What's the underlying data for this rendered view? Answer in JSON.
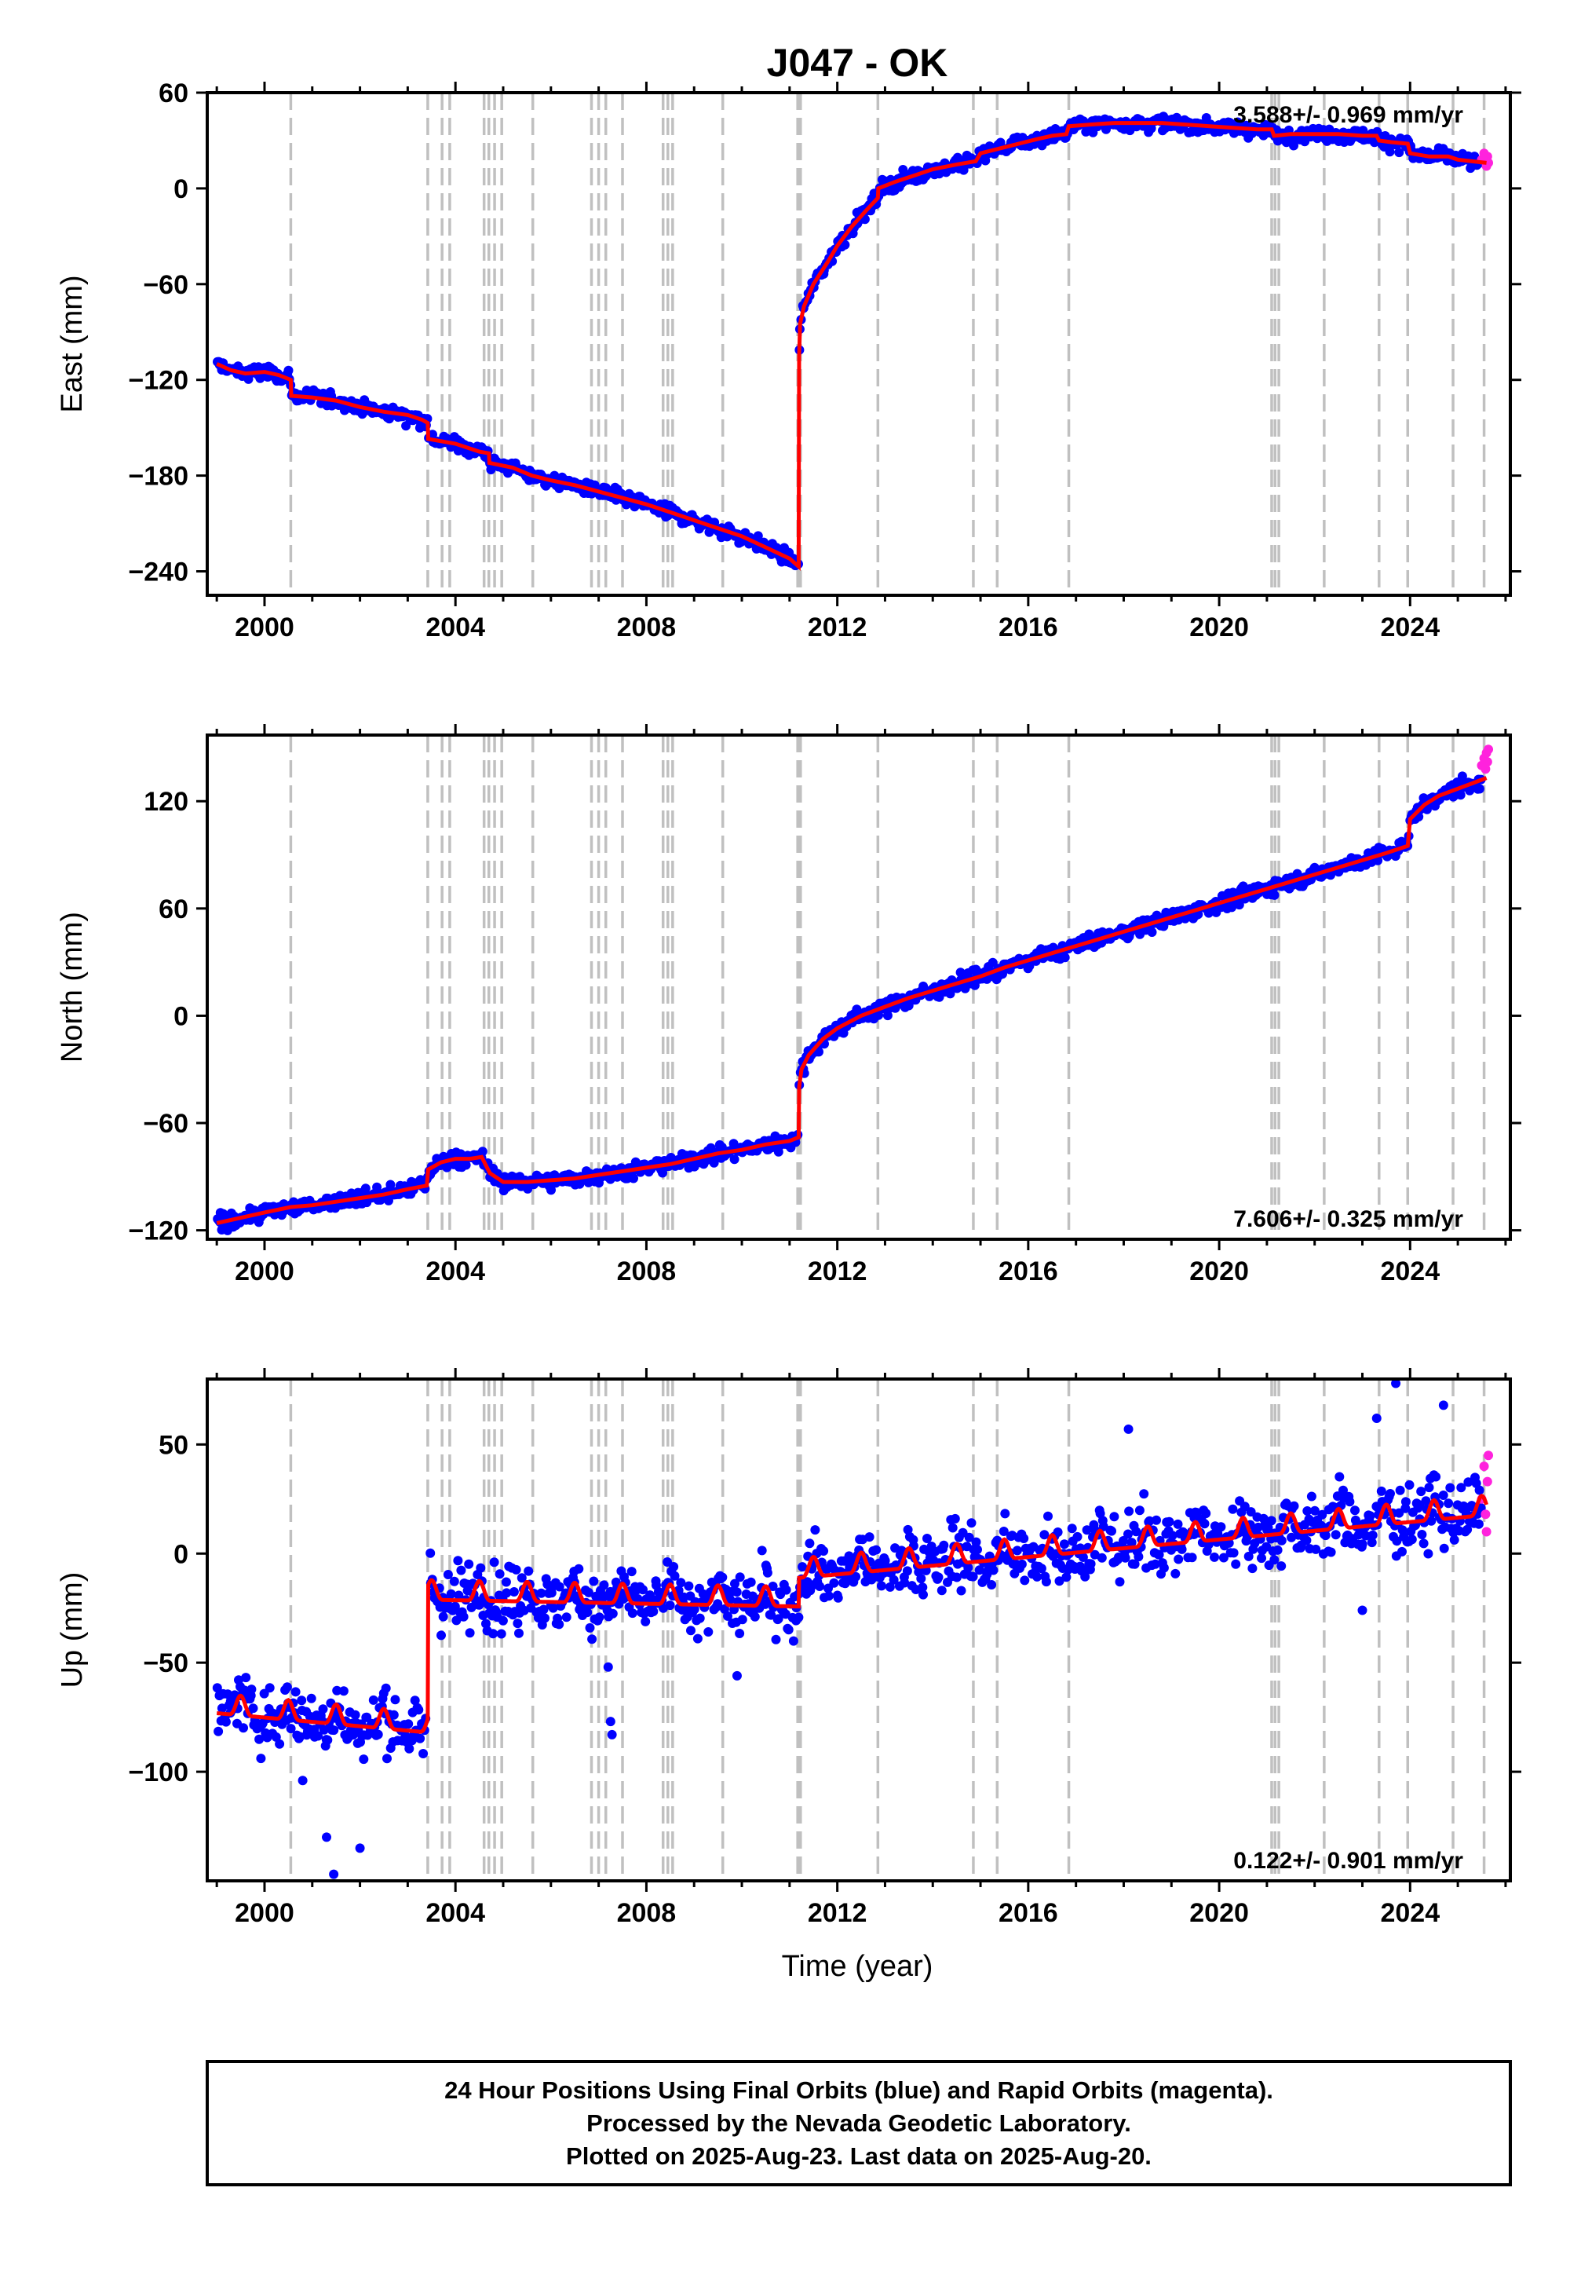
{
  "title": "J047 - OK",
  "xlabel": "Time (year)",
  "footer": {
    "line1": "24 Hour Positions Using Final Orbits (blue) and Rapid Orbits (magenta).",
    "line2": "Processed by the Nevada Geodetic Laboratory.",
    "line3": "Plotted on 2025-Aug-23. Last data on 2025-Aug-20."
  },
  "colors": {
    "final": "#0000ff",
    "rapid": "#ff22dd",
    "model": "#ff0000",
    "event": "#c0c0c0"
  },
  "chart_data": [
    {
      "type": "scatter",
      "component": "East",
      "ylabel": "East (mm)",
      "rate": "3.588+/- 0.969 mm/yr",
      "xlim": [
        1998.8,
        2026.1
      ],
      "ylim": [
        -255,
        60
      ],
      "yticks": [
        60,
        0,
        -60,
        -120,
        -180,
        -240
      ],
      "ytick_labels": [
        "60",
        "0",
        "−60",
        "−120",
        "−180",
        "−240"
      ],
      "xticks": [
        2000,
        2004,
        2008,
        2012,
        2016,
        2020,
        2024
      ],
      "xtick_labels": [
        "2000",
        "2004",
        "2008",
        "2012",
        "2016",
        "2020",
        "2024"
      ],
      "model": [
        [
          1999.0,
          -110
        ],
        [
          1999.3,
          -114
        ],
        [
          1999.6,
          -116
        ],
        [
          2000.0,
          -115
        ],
        [
          2000.3,
          -117
        ],
        [
          2000.55,
          -120
        ],
        [
          2000.56,
          -130
        ],
        [
          2001.0,
          -131
        ],
        [
          2001.5,
          -133
        ],
        [
          2002.0,
          -137
        ],
        [
          2002.5,
          -140
        ],
        [
          2003.0,
          -142
        ],
        [
          2003.3,
          -145
        ],
        [
          2003.42,
          -147
        ],
        [
          2003.43,
          -157
        ],
        [
          2004.0,
          -160
        ],
        [
          2004.5,
          -165
        ],
        [
          2004.7,
          -166
        ],
        [
          2004.71,
          -172
        ],
        [
          2005.2,
          -175
        ],
        [
          2005.6,
          -180
        ],
        [
          2006.0,
          -183
        ],
        [
          2006.5,
          -186
        ],
        [
          2007.0,
          -190
        ],
        [
          2007.5,
          -194
        ],
        [
          2008.0,
          -198
        ],
        [
          2008.5,
          -203
        ],
        [
          2009.0,
          -208
        ],
        [
          2009.5,
          -213
        ],
        [
          2010.0,
          -218
        ],
        [
          2010.5,
          -225
        ],
        [
          2011.0,
          -232
        ],
        [
          2011.19,
          -237
        ],
        [
          2011.2,
          -105
        ],
        [
          2011.22,
          -85
        ],
        [
          2011.3,
          -74
        ],
        [
          2011.5,
          -60
        ],
        [
          2011.8,
          -46
        ],
        [
          2012.0,
          -36
        ],
        [
          2012.3,
          -24
        ],
        [
          2012.6,
          -14
        ],
        [
          2012.85,
          -6
        ],
        [
          2012.86,
          0
        ],
        [
          2013.2,
          4
        ],
        [
          2013.6,
          8
        ],
        [
          2014.0,
          12
        ],
        [
          2014.5,
          15
        ],
        [
          2014.9,
          17
        ],
        [
          2015.0,
          22
        ],
        [
          2015.4,
          25
        ],
        [
          2015.8,
          28
        ],
        [
          2016.2,
          31
        ],
        [
          2016.5,
          33
        ],
        [
          2016.8,
          34
        ],
        [
          2016.85,
          39
        ],
        [
          2017.3,
          40
        ],
        [
          2017.8,
          41
        ],
        [
          2018.3,
          41
        ],
        [
          2018.8,
          41
        ],
        [
          2019.3,
          40
        ],
        [
          2019.8,
          39
        ],
        [
          2020.3,
          38
        ],
        [
          2020.8,
          37
        ],
        [
          2021.1,
          37
        ],
        [
          2021.15,
          33
        ],
        [
          2021.5,
          34
        ],
        [
          2022.0,
          34
        ],
        [
          2022.5,
          34
        ],
        [
          2023.0,
          33
        ],
        [
          2023.3,
          33
        ],
        [
          2023.35,
          30
        ],
        [
          2023.6,
          29
        ],
        [
          2023.95,
          28
        ],
        [
          2024.0,
          22
        ],
        [
          2024.4,
          20
        ],
        [
          2024.8,
          20
        ],
        [
          2025.0,
          18
        ],
        [
          2025.3,
          17
        ],
        [
          2025.6,
          16
        ]
      ],
      "rapid": [
        [
          2025.5,
          18
        ],
        [
          2025.55,
          22
        ],
        [
          2025.6,
          14
        ],
        [
          2025.62,
          20
        ],
        [
          2025.64,
          16
        ]
      ]
    },
    {
      "type": "scatter",
      "component": "North",
      "ylabel": "North (mm)",
      "rate": "7.606+/- 0.325 mm/yr",
      "xlim": [
        1998.8,
        2026.1
      ],
      "ylim": [
        -125,
        157
      ],
      "yticks": [
        120,
        60,
        0,
        -60,
        -120
      ],
      "ytick_labels": [
        "120",
        "60",
        "0",
        "−60",
        "−120"
      ],
      "xticks": [
        2000,
        2004,
        2008,
        2012,
        2016,
        2020,
        2024
      ],
      "xtick_labels": [
        "2000",
        "2004",
        "2008",
        "2012",
        "2016",
        "2020",
        "2024"
      ],
      "model": [
        [
          1999.0,
          -116
        ],
        [
          1999.5,
          -113
        ],
        [
          2000.0,
          -110
        ],
        [
          2000.55,
          -107
        ],
        [
          2001.0,
          -106
        ],
        [
          2001.5,
          -104
        ],
        [
          2002.0,
          -102
        ],
        [
          2002.5,
          -100
        ],
        [
          2003.0,
          -97
        ],
        [
          2003.4,
          -95
        ],
        [
          2003.43,
          -86
        ],
        [
          2003.7,
          -82
        ],
        [
          2004.0,
          -80
        ],
        [
          2004.3,
          -80
        ],
        [
          2004.55,
          -79
        ],
        [
          2004.72,
          -88
        ],
        [
          2005.0,
          -93
        ],
        [
          2005.5,
          -93
        ],
        [
          2006.0,
          -92
        ],
        [
          2006.5,
          -91
        ],
        [
          2007.0,
          -89
        ],
        [
          2007.5,
          -87
        ],
        [
          2008.0,
          -85
        ],
        [
          2008.5,
          -83
        ],
        [
          2009.0,
          -80
        ],
        [
          2009.5,
          -77
        ],
        [
          2010.0,
          -75
        ],
        [
          2010.5,
          -72
        ],
        [
          2011.0,
          -70
        ],
        [
          2011.19,
          -68
        ],
        [
          2011.2,
          -40
        ],
        [
          2011.25,
          -30
        ],
        [
          2011.4,
          -22
        ],
        [
          2011.7,
          -13
        ],
        [
          2012.0,
          -7
        ],
        [
          2012.5,
          0
        ],
        [
          2013.0,
          5
        ],
        [
          2013.5,
          10
        ],
        [
          2014.0,
          14
        ],
        [
          2014.5,
          18
        ],
        [
          2015.0,
          22
        ],
        [
          2015.5,
          27
        ],
        [
          2016.0,
          31
        ],
        [
          2016.5,
          35
        ],
        [
          2017.0,
          39
        ],
        [
          2017.5,
          43
        ],
        [
          2018.0,
          47
        ],
        [
          2018.5,
          51
        ],
        [
          2019.0,
          55
        ],
        [
          2019.5,
          59
        ],
        [
          2020.0,
          63
        ],
        [
          2020.5,
          67
        ],
        [
          2021.0,
          71
        ],
        [
          2021.5,
          75
        ],
        [
          2022.0,
          79
        ],
        [
          2022.5,
          83
        ],
        [
          2023.0,
          87
        ],
        [
          2023.5,
          91
        ],
        [
          2023.95,
          95
        ],
        [
          2024.0,
          110
        ],
        [
          2024.3,
          118
        ],
        [
          2024.6,
          123
        ],
        [
          2025.0,
          127
        ],
        [
          2025.3,
          130
        ],
        [
          2025.6,
          133
        ]
      ],
      "rapid": [
        [
          2025.5,
          140
        ],
        [
          2025.55,
          144
        ],
        [
          2025.58,
          138
        ],
        [
          2025.6,
          147
        ],
        [
          2025.62,
          142
        ],
        [
          2025.64,
          149
        ]
      ]
    },
    {
      "type": "scatter",
      "component": "Up",
      "ylabel": "Up (mm)",
      "rate": "0.122+/- 0.901 mm/yr",
      "xlim": [
        1998.8,
        2026.1
      ],
      "ylim": [
        -150,
        80
      ],
      "yticks": [
        50,
        0,
        -50,
        -100
      ],
      "ytick_labels": [
        "50",
        "0",
        "−50",
        "−100"
      ],
      "xticks": [
        2000,
        2004,
        2008,
        2012,
        2016,
        2020,
        2024
      ],
      "xtick_labels": [
        "2000",
        "2004",
        "2008",
        "2012",
        "2016",
        "2020",
        "2024"
      ],
      "model_segments": [
        {
          "x0": 1999.0,
          "x1": 2003.42,
          "offset": -70,
          "trend": -2.0
        },
        {
          "x0": 2003.43,
          "x1": 2011.19,
          "offset": -18,
          "trend": -0.4
        },
        {
          "x0": 2011.2,
          "x1": 2025.6,
          "offset": -8,
          "trend": 2.0
        }
      ],
      "seasonal_amplitude": 9,
      "outliers": [
        [
          2000.8,
          -104
        ],
        [
          2001.3,
          -130
        ],
        [
          2001.45,
          -147
        ],
        [
          2002.0,
          -135
        ],
        [
          2007.2,
          -52
        ],
        [
          2007.25,
          -77
        ],
        [
          2007.28,
          -83
        ],
        [
          2009.9,
          -56
        ],
        [
          2018.1,
          57
        ],
        [
          2023.0,
          -26
        ],
        [
          2023.3,
          62
        ],
        [
          2023.7,
          78
        ],
        [
          2024.7,
          68
        ]
      ],
      "rapid": [
        [
          2025.5,
          25
        ],
        [
          2025.55,
          40
        ],
        [
          2025.58,
          18
        ],
        [
          2025.6,
          10
        ],
        [
          2025.62,
          33
        ],
        [
          2025.64,
          45
        ]
      ]
    }
  ],
  "events": [
    2000.55,
    2003.42,
    2003.72,
    2003.88,
    2004.6,
    2004.7,
    2004.82,
    2004.97,
    2005.62,
    2006.85,
    2007.0,
    2007.15,
    2007.5,
    2008.35,
    2008.45,
    2008.55,
    2009.6,
    2011.17,
    2011.2,
    2011.23,
    2012.85,
    2014.85,
    2015.35,
    2016.85,
    2021.1,
    2021.17,
    2021.25,
    2022.2,
    2023.35,
    2023.95,
    2024.9,
    2025.55
  ]
}
